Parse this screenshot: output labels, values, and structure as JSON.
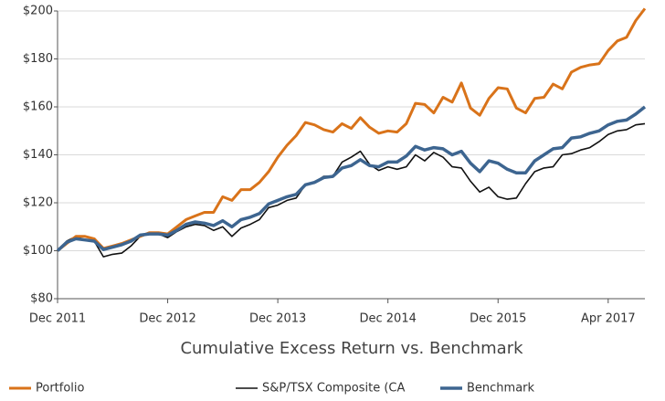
{
  "chart_data": {
    "type": "line",
    "title": "Cumulative Excess Return vs. Benchmark",
    "categories": [
      "Dec 2011",
      null,
      null,
      null,
      null,
      null,
      null,
      null,
      null,
      null,
      null,
      null,
      "Dec 2012",
      null,
      null,
      null,
      null,
      null,
      null,
      null,
      null,
      null,
      null,
      null,
      "Dec 2013",
      null,
      null,
      null,
      null,
      null,
      null,
      null,
      null,
      null,
      null,
      null,
      "Dec 2014",
      null,
      null,
      null,
      null,
      null,
      null,
      null,
      null,
      null,
      null,
      null,
      "Dec 2015",
      null,
      null,
      null,
      null,
      null,
      null,
      null,
      null,
      null,
      null,
      null,
      "Apr 2017",
      null,
      null,
      null,
      null
    ],
    "series": [
      {
        "name": "Portfolio",
        "color": "#d9731a",
        "values": [
          100,
          103,
          106,
          106,
          105,
          101,
          102,
          103,
          104.5,
          106,
          107.5,
          107.5,
          107,
          110,
          113,
          114.5,
          116,
          116,
          122.5,
          121,
          125.5,
          125.5,
          128.5,
          133,
          139,
          144,
          148,
          153.5,
          152.5,
          150.5,
          149.5,
          153,
          151,
          155.5,
          151.5,
          149,
          150,
          149.5,
          153,
          161.5,
          161,
          157.5,
          164,
          162,
          170,
          159.5,
          156.5,
          163.5,
          168,
          167.5,
          159.5,
          157.5,
          163.5,
          164,
          169.5,
          167.5,
          174.5,
          176.5,
          177.5,
          178,
          183.5,
          187.5,
          189,
          196,
          201
        ]
      },
      {
        "name": "S&P/TSX Composite (CA",
        "color": "#111111",
        "values": [
          100,
          104,
          106,
          104.5,
          104,
          97.5,
          98.5,
          99,
          102,
          106,
          107,
          107,
          105.5,
          108,
          110,
          111,
          110.5,
          108.5,
          110,
          106,
          109.5,
          111,
          113,
          118,
          119,
          121,
          122,
          127.5,
          128.5,
          131,
          131,
          137,
          139,
          141.5,
          136,
          133.5,
          135,
          134,
          135,
          140,
          137.5,
          141,
          139,
          135,
          134.5,
          129,
          124.5,
          126.5,
          122.5,
          121.5,
          122,
          128,
          133,
          134.5,
          135,
          140,
          140.5,
          142,
          143,
          145.5,
          148.5,
          150,
          150.5,
          152.5,
          153
        ]
      },
      {
        "name": "Benchmark",
        "color": "#3d6590",
        "values": [
          100,
          103.5,
          105,
          104.5,
          104,
          100.5,
          101.5,
          102.5,
          104,
          106.5,
          107,
          107,
          106.5,
          108.5,
          111,
          112,
          111.5,
          110.5,
          112.5,
          110,
          113,
          114,
          115.5,
          119.5,
          121,
          122.5,
          123.5,
          127.5,
          128.5,
          130.5,
          131,
          134.5,
          135.5,
          138,
          135.5,
          135,
          137,
          137,
          139.5,
          143.5,
          142,
          143,
          142.5,
          140,
          141.5,
          136.5,
          133,
          137.5,
          136.5,
          134,
          132.5,
          132.5,
          137.5,
          140,
          142.5,
          143,
          147,
          147.5,
          149,
          150,
          152.5,
          154,
          154.5,
          157,
          160
        ]
      }
    ],
    "ylim": [
      80,
      200
    ],
    "yticks": [
      {
        "value": 80,
        "label": "$80"
      },
      {
        "value": 100,
        "label": "$100"
      },
      {
        "value": 120,
        "label": "$120"
      },
      {
        "value": 140,
        "label": "$140"
      },
      {
        "value": 160,
        "label": "$160"
      },
      {
        "value": 180,
        "label": "$180"
      },
      {
        "value": 200,
        "label": "$200"
      }
    ],
    "grid": true,
    "legend": "bottom"
  }
}
